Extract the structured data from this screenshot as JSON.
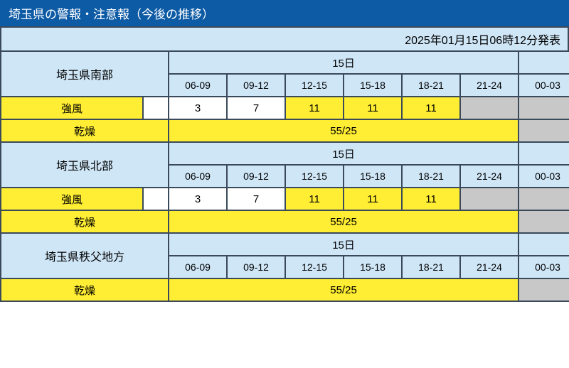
{
  "title": "埼玉県の警報・注意報（今後の推移）",
  "timestamp": "2025年01月15日06時12分発表",
  "colors": {
    "titleBg": "#0d5aa5",
    "headerBg": "#cfe6f7",
    "labelBg": "#ffee33",
    "highlightBg": "#ffee33",
    "plain": "#ffffff",
    "greyed": "#c8c8c8",
    "border": "#3a4a5a"
  },
  "layout": {
    "regionColWidth": 200,
    "spacerColWidth": 36,
    "timeColWidth": 82
  },
  "dateHeaders": {
    "day1": "15日",
    "day2": ""
  },
  "timeSlots": [
    "06-09",
    "09-12",
    "12-15",
    "15-18",
    "18-21",
    "21-24",
    "00-03"
  ],
  "regions": [
    {
      "name": "埼玉県南部",
      "rows": [
        {
          "label": "強風",
          "hasSpacer": true,
          "bandColspan": null,
          "cells": [
            {
              "v": "3",
              "hl": false,
              "grey": false
            },
            {
              "v": "7",
              "hl": false,
              "grey": false
            },
            {
              "v": "11",
              "hl": true,
              "grey": false
            },
            {
              "v": "11",
              "hl": true,
              "grey": false
            },
            {
              "v": "11",
              "hl": true,
              "grey": false
            },
            {
              "v": "",
              "hl": false,
              "grey": true
            },
            {
              "v": "",
              "hl": false,
              "grey": true
            }
          ]
        },
        {
          "label": "乾燥",
          "hasSpacer": false,
          "bandColspan": 6,
          "bandValue": "55/25",
          "tail": [
            {
              "v": "",
              "hl": false,
              "grey": true
            }
          ]
        }
      ]
    },
    {
      "name": "埼玉県北部",
      "rows": [
        {
          "label": "強風",
          "hasSpacer": true,
          "bandColspan": null,
          "cells": [
            {
              "v": "3",
              "hl": false,
              "grey": false
            },
            {
              "v": "7",
              "hl": false,
              "grey": false
            },
            {
              "v": "11",
              "hl": true,
              "grey": false
            },
            {
              "v": "11",
              "hl": true,
              "grey": false
            },
            {
              "v": "11",
              "hl": true,
              "grey": false
            },
            {
              "v": "",
              "hl": false,
              "grey": true
            },
            {
              "v": "",
              "hl": false,
              "grey": true
            }
          ]
        },
        {
          "label": "乾燥",
          "hasSpacer": false,
          "bandColspan": 6,
          "bandValue": "55/25",
          "tail": [
            {
              "v": "",
              "hl": false,
              "grey": true
            }
          ]
        }
      ]
    },
    {
      "name": "埼玉県秩父地方",
      "rows": [
        {
          "label": "乾燥",
          "hasSpacer": false,
          "bandColspan": 6,
          "bandValue": "55/25",
          "tail": [
            {
              "v": "",
              "hl": false,
              "grey": true
            }
          ]
        }
      ]
    }
  ]
}
